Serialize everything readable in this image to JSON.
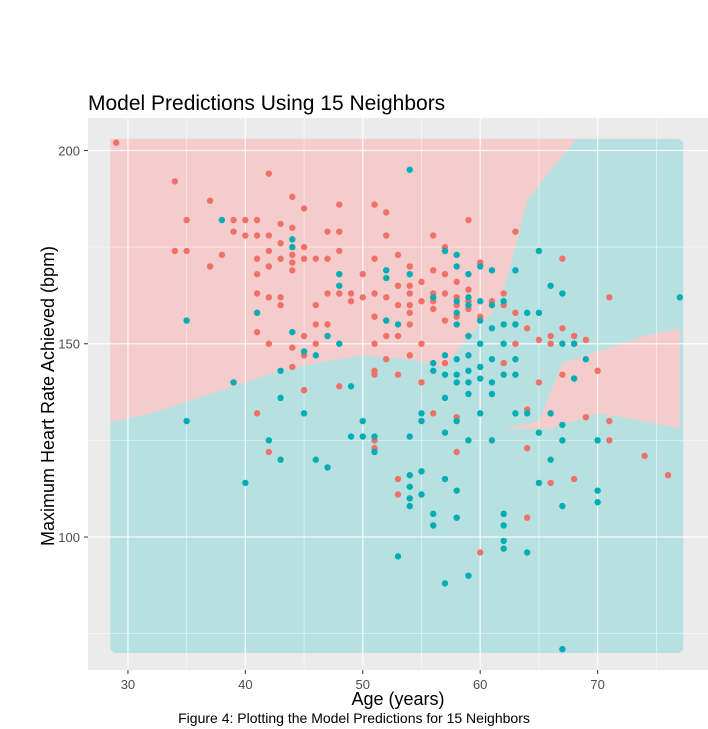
{
  "chart_data": {
    "type": "scatter",
    "title": "Model Predictions Using 15 Neighbors",
    "xlabel": "Age (years)",
    "ylabel": "Maximum Heart Rate Achieved (bpm)",
    "xlim": [
      26.6,
      79.4
    ],
    "ylim": [
      65.6,
      208.4
    ],
    "xticks": [
      30,
      40,
      50,
      60,
      70
    ],
    "yticks": [
      100,
      150,
      200
    ],
    "grid": true,
    "legend": "none",
    "colors": {
      "red_point": "#F07167",
      "teal_point": "#00ADB5",
      "red_region": "#F4CCCC",
      "teal_region": "#B7E1E1",
      "panel": "#EBEBEB",
      "grid": "#FFFFFF"
    },
    "background_regions": {
      "red_region_boundary": [
        [
          29,
          130
        ],
        [
          32,
          132
        ],
        [
          36,
          136
        ],
        [
          40,
          140
        ],
        [
          43,
          143
        ],
        [
          46,
          145
        ],
        [
          50,
          147
        ],
        [
          54,
          146
        ],
        [
          57,
          144
        ],
        [
          59,
          152
        ],
        [
          61,
          158
        ],
        [
          62,
          164
        ],
        [
          63,
          175
        ],
        [
          64,
          187
        ],
        [
          66,
          195
        ],
        [
          68,
          202
        ]
      ],
      "secondary_red_region": [
        [
          62,
          128
        ],
        [
          65,
          130
        ],
        [
          67,
          145
        ],
        [
          70,
          148
        ],
        [
          74,
          152
        ],
        [
          77,
          154
        ],
        [
          77,
          128
        ],
        [
          74,
          130
        ],
        [
          70,
          132
        ],
        [
          66,
          128
        ]
      ]
    },
    "series": [
      {
        "color_key": "red",
        "points": [
          [
            29,
            202
          ],
          [
            34,
            192
          ],
          [
            34,
            174
          ],
          [
            35,
            182
          ],
          [
            35,
            174
          ],
          [
            37,
            187
          ],
          [
            37,
            170
          ],
          [
            38,
            173
          ],
          [
            39,
            182
          ],
          [
            39,
            179
          ],
          [
            40,
            178
          ],
          [
            40,
            182
          ],
          [
            41,
            182
          ],
          [
            41,
            178
          ],
          [
            41,
            172
          ],
          [
            41,
            168
          ],
          [
            41,
            163
          ],
          [
            41,
            158
          ],
          [
            41,
            153
          ],
          [
            41,
            132
          ],
          [
            42,
            194
          ],
          [
            42,
            178
          ],
          [
            42,
            174
          ],
          [
            42,
            170
          ],
          [
            42,
            162
          ],
          [
            42,
            150
          ],
          [
            42,
            122
          ],
          [
            43,
            181
          ],
          [
            43,
            176
          ],
          [
            43,
            172
          ],
          [
            43,
            162
          ],
          [
            43,
            160
          ],
          [
            44,
            188
          ],
          [
            44,
            180
          ],
          [
            44,
            173
          ],
          [
            44,
            171
          ],
          [
            44,
            169
          ],
          [
            44,
            149
          ],
          [
            44,
            144
          ],
          [
            45,
            185
          ],
          [
            45,
            175
          ],
          [
            45,
            172
          ],
          [
            45,
            152
          ],
          [
            45,
            147
          ],
          [
            45,
            138
          ],
          [
            46,
            172
          ],
          [
            46,
            160
          ],
          [
            46,
            155
          ],
          [
            46,
            150
          ],
          [
            47,
            179
          ],
          [
            47,
            172
          ],
          [
            47,
            163
          ],
          [
            47,
            155
          ],
          [
            48,
            186
          ],
          [
            48,
            179
          ],
          [
            48,
            174
          ],
          [
            48,
            163
          ],
          [
            48,
            139
          ],
          [
            49,
            163
          ],
          [
            49,
            161
          ],
          [
            50,
            162
          ],
          [
            50,
            168
          ],
          [
            51,
            186
          ],
          [
            51,
            172
          ],
          [
            51,
            163
          ],
          [
            51,
            157
          ],
          [
            51,
            150
          ],
          [
            51,
            143
          ],
          [
            51,
            142
          ],
          [
            51,
            125
          ],
          [
            51,
            123
          ],
          [
            52,
            184
          ],
          [
            52,
            178
          ],
          [
            52,
            162
          ],
          [
            52,
            152
          ],
          [
            52,
            146
          ],
          [
            53,
            173
          ],
          [
            53,
            165
          ],
          [
            53,
            160
          ],
          [
            53,
            152
          ],
          [
            53,
            142
          ],
          [
            53,
            115
          ],
          [
            53,
            111
          ],
          [
            54,
            170
          ],
          [
            54,
            165
          ],
          [
            54,
            163
          ],
          [
            54,
            160
          ],
          [
            54,
            158
          ],
          [
            54,
            155
          ],
          [
            54,
            147
          ],
          [
            55,
            166
          ],
          [
            55,
            161
          ],
          [
            55,
            150
          ],
          [
            55,
            140
          ],
          [
            56,
            178
          ],
          [
            56,
            169
          ],
          [
            56,
            163
          ],
          [
            56,
            161
          ],
          [
            56,
            159
          ],
          [
            56,
            132
          ],
          [
            57,
            175
          ],
          [
            57,
            168
          ],
          [
            57,
            163
          ],
          [
            57,
            156
          ],
          [
            57,
            145
          ],
          [
            58,
            166
          ],
          [
            58,
            162
          ],
          [
            58,
            160
          ],
          [
            58,
            157
          ],
          [
            58,
            131
          ],
          [
            58,
            122
          ],
          [
            59,
            182
          ],
          [
            59,
            164
          ],
          [
            59,
            161
          ],
          [
            59,
            159
          ],
          [
            60,
            171
          ],
          [
            60,
            157
          ],
          [
            60,
            96
          ],
          [
            61,
            161
          ],
          [
            62,
            163
          ],
          [
            62,
            160
          ],
          [
            62,
            145
          ],
          [
            63,
            179
          ],
          [
            63,
            158
          ],
          [
            63,
            155
          ],
          [
            63,
            150
          ],
          [
            64,
            154
          ],
          [
            64,
            133
          ],
          [
            64,
            123
          ],
          [
            64,
            105
          ],
          [
            65,
            151
          ],
          [
            65,
            140
          ],
          [
            66,
            152
          ],
          [
            66,
            150
          ],
          [
            66,
            114
          ],
          [
            67,
            172
          ],
          [
            67,
            154
          ],
          [
            67,
            142
          ],
          [
            68,
            152
          ],
          [
            68,
            150
          ],
          [
            68,
            115
          ],
          [
            69,
            151
          ],
          [
            69,
            131
          ],
          [
            70,
            143
          ],
          [
            71,
            162
          ],
          [
            71,
            130
          ],
          [
            71,
            125
          ],
          [
            74,
            121
          ],
          [
            76,
            116
          ]
        ]
      },
      {
        "color_key": "teal",
        "points": [
          [
            35,
            156
          ],
          [
            35,
            130
          ],
          [
            38,
            182
          ],
          [
            39,
            140
          ],
          [
            40,
            114
          ],
          [
            41,
            158
          ],
          [
            42,
            125
          ],
          [
            43,
            143
          ],
          [
            43,
            136
          ],
          [
            43,
            120
          ],
          [
            44,
            177
          ],
          [
            44,
            175
          ],
          [
            44,
            153
          ],
          [
            45,
            148
          ],
          [
            45,
            132
          ],
          [
            46,
            147
          ],
          [
            46,
            120
          ],
          [
            47,
            152
          ],
          [
            47,
            118
          ],
          [
            48,
            168
          ],
          [
            48,
            165
          ],
          [
            48,
            150
          ],
          [
            49,
            139
          ],
          [
            49,
            126
          ],
          [
            50,
            130
          ],
          [
            50,
            126
          ],
          [
            51,
            126
          ],
          [
            51,
            122
          ],
          [
            52,
            169
          ],
          [
            52,
            167
          ],
          [
            52,
            156
          ],
          [
            53,
            155
          ],
          [
            53,
            95
          ],
          [
            54,
            195
          ],
          [
            54,
            168
          ],
          [
            54,
            126
          ],
          [
            54,
            116
          ],
          [
            54,
            113
          ],
          [
            54,
            110
          ],
          [
            54,
            108
          ],
          [
            55,
            132
          ],
          [
            55,
            130
          ],
          [
            55,
            117
          ],
          [
            55,
            111
          ],
          [
            56,
            162
          ],
          [
            56,
            145
          ],
          [
            56,
            143
          ],
          [
            56,
            106
          ],
          [
            56,
            103
          ],
          [
            57,
            174
          ],
          [
            57,
            147
          ],
          [
            57,
            142
          ],
          [
            57,
            136
          ],
          [
            57,
            127
          ],
          [
            57,
            115
          ],
          [
            57,
            88
          ],
          [
            58,
            173
          ],
          [
            58,
            170
          ],
          [
            58,
            161
          ],
          [
            58,
            158
          ],
          [
            58,
            155
          ],
          [
            58,
            146
          ],
          [
            58,
            142
          ],
          [
            58,
            140
          ],
          [
            58,
            130
          ],
          [
            58,
            112
          ],
          [
            58,
            105
          ],
          [
            59,
            168
          ],
          [
            59,
            162
          ],
          [
            59,
            160
          ],
          [
            59,
            152
          ],
          [
            59,
            147
          ],
          [
            59,
            143
          ],
          [
            59,
            140
          ],
          [
            59,
            137
          ],
          [
            59,
            125
          ],
          [
            59,
            90
          ],
          [
            60,
            170
          ],
          [
            60,
            161
          ],
          [
            60,
            156
          ],
          [
            60,
            150
          ],
          [
            60,
            144
          ],
          [
            60,
            141
          ],
          [
            60,
            132
          ],
          [
            61,
            169
          ],
          [
            61,
            160
          ],
          [
            61,
            154
          ],
          [
            61,
            146
          ],
          [
            61,
            140
          ],
          [
            61,
            137
          ],
          [
            61,
            125
          ],
          [
            62,
            161
          ],
          [
            62,
            155
          ],
          [
            62,
            150
          ],
          [
            62,
            142
          ],
          [
            62,
            106
          ],
          [
            62,
            103
          ],
          [
            62,
            99
          ],
          [
            62,
            97
          ],
          [
            63,
            169
          ],
          [
            63,
            155
          ],
          [
            63,
            146
          ],
          [
            63,
            142
          ],
          [
            63,
            132
          ],
          [
            64,
            158
          ],
          [
            64,
            132
          ],
          [
            64,
            96
          ],
          [
            65,
            174
          ],
          [
            65,
            158
          ],
          [
            65,
            127
          ],
          [
            65,
            114
          ],
          [
            66,
            165
          ],
          [
            66,
            132
          ],
          [
            66,
            120
          ],
          [
            67,
            163
          ],
          [
            67,
            150
          ],
          [
            67,
            129
          ],
          [
            67,
            125
          ],
          [
            67,
            108
          ],
          [
            67,
            71
          ],
          [
            68,
            150
          ],
          [
            68,
            141
          ],
          [
            69,
            146
          ],
          [
            70,
            125
          ],
          [
            70,
            112
          ],
          [
            70,
            109
          ],
          [
            77,
            162
          ]
        ]
      }
    ]
  },
  "caption": "Figure 4: Plotting the Model Predictions for 15 Neighbors"
}
